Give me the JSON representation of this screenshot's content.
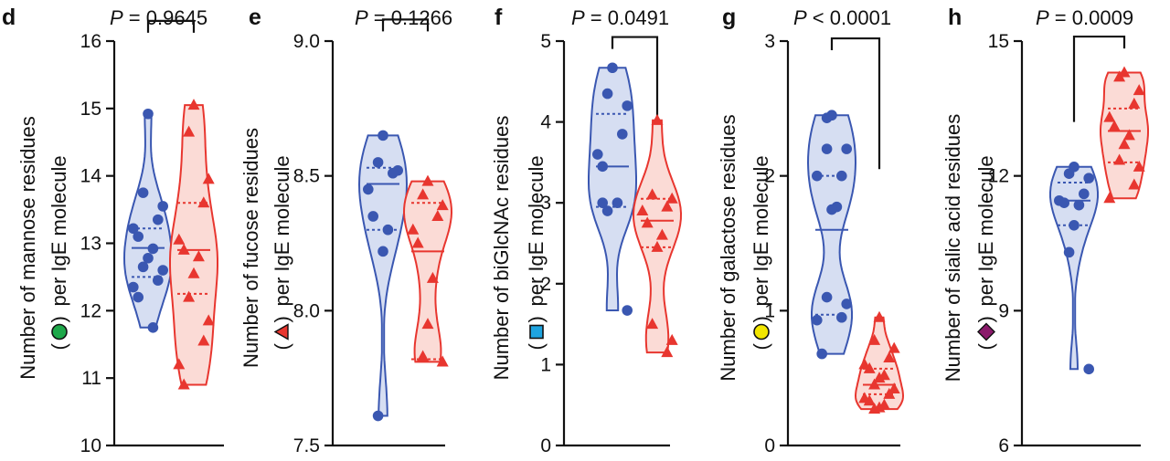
{
  "colors": {
    "blue": "#3a57b1",
    "blue_fill": "#d6def2",
    "red": "#e8362f",
    "red_fill": "#fbdbd6",
    "axis": "#111111",
    "mannose_symbol": "#1ea84a",
    "fucose_symbol": "#e8362f",
    "biglcnac_symbol": "#1ea4e0",
    "galactose_symbol": "#f2e600",
    "sialic_symbol": "#8b1a6b"
  },
  "chart_data": [
    {
      "type": "violin",
      "panel": "d",
      "p_value": "P = 0.9645",
      "ylabel_line1": "Number of mannose residues",
      "ylabel_line2": "per IgE molecule",
      "symbol": "circle",
      "symbol_color": "mannose_symbol",
      "ylim": [
        10,
        16
      ],
      "yticks": [
        "10",
        "11",
        "12",
        "13",
        "14",
        "15",
        "16"
      ],
      "groups": [
        {
          "name": "blue",
          "shape": "circle",
          "median": 12.93,
          "q1": 12.5,
          "q3": 13.22,
          "points": [
            14.92,
            13.75,
            13.55,
            13.35,
            13.22,
            13.1,
            12.92,
            12.78,
            12.65,
            12.6,
            12.45,
            12.35,
            12.2,
            11.75
          ]
        },
        {
          "name": "red",
          "shape": "triangle",
          "median": 12.9,
          "q1": 12.25,
          "q3": 13.6,
          "points": [
            15.05,
            14.65,
            13.95,
            13.6,
            13.05,
            12.9,
            12.8,
            12.55,
            12.2,
            11.85,
            11.55,
            11.2,
            10.9
          ]
        }
      ],
      "bracket_y": 16.3
    },
    {
      "type": "violin",
      "panel": "e",
      "p_value": "P = 0.1266",
      "ylabel_line1": "Number of fucose residues",
      "ylabel_line2": "per IgE molecule",
      "symbol": "triangle",
      "symbol_color": "fucose_symbol",
      "ylim": [
        7.5,
        9.0
      ],
      "yticks": [
        "7.5",
        "8.0",
        "8.5",
        "9.0"
      ],
      "groups": [
        {
          "name": "blue",
          "shape": "circle",
          "median": 8.47,
          "q1": 8.3,
          "q3": 8.53,
          "points": [
            8.65,
            8.55,
            8.52,
            8.51,
            8.45,
            8.35,
            8.3,
            8.22,
            7.61
          ]
        },
        {
          "name": "red",
          "shape": "triangle",
          "median": 8.22,
          "q1": 7.82,
          "q3": 8.4,
          "points": [
            8.48,
            8.43,
            8.39,
            8.35,
            8.3,
            8.25,
            8.12,
            7.95,
            7.83,
            7.81
          ]
        }
      ],
      "bracket_y": 9.08
    },
    {
      "type": "violin",
      "panel": "f",
      "p_value": "P = 0.0491",
      "ylabel_line1": "Number of biGlcNAc residues",
      "ylabel_line2": "per IgE molecule",
      "symbol": "square",
      "symbol_color": "biglcnac_symbol",
      "ylim": [
        0,
        5
      ],
      "yticks": [
        "0",
        "1",
        "2",
        "3",
        "4",
        "5"
      ],
      "groups": [
        {
          "name": "blue",
          "shape": "circle",
          "median": 3.45,
          "q1": 2.95,
          "q3": 4.1,
          "points": [
            4.67,
            4.35,
            4.2,
            3.85,
            3.6,
            3.45,
            3.0,
            3.0,
            2.9,
            1.67
          ]
        },
        {
          "name": "red",
          "shape": "triangle",
          "median": 2.78,
          "q1": 2.45,
          "q3": 3.05,
          "points": [
            4.02,
            3.1,
            3.05,
            2.95,
            2.9,
            2.75,
            2.6,
            2.45,
            1.5,
            1.3,
            1.15
          ]
        }
      ],
      "bracket_y": 5.05,
      "bracket_right_y": 3.4
    },
    {
      "type": "violin",
      "panel": "g",
      "p_value": "P < 0.0001",
      "ylabel_line1": "Number of galactose residues",
      "ylabel_line2": "per IgE molecule",
      "symbol": "circle",
      "symbol_color": "galactose_symbol",
      "ylim": [
        0,
        3
      ],
      "yticks": [
        "0",
        "1",
        "2",
        "3"
      ],
      "groups": [
        {
          "name": "blue",
          "shape": "circle",
          "median": 1.6,
          "q1": 0.97,
          "q3": 2.0,
          "points": [
            2.45,
            2.43,
            2.2,
            2.2,
            2.0,
            2.0,
            1.77,
            1.75,
            1.1,
            1.05,
            0.95,
            0.93,
            0.68
          ]
        },
        {
          "name": "red",
          "shape": "triangle",
          "median": 0.45,
          "q1": 0.38,
          "q3": 0.57,
          "points": [
            0.95,
            0.78,
            0.72,
            0.65,
            0.6,
            0.57,
            0.52,
            0.5,
            0.45,
            0.42,
            0.38,
            0.35,
            0.33,
            0.3,
            0.28,
            0.27
          ]
        }
      ],
      "bracket_y": 3.02,
      "bracket_right_y": 2.05
    },
    {
      "type": "violin",
      "panel": "h",
      "p_value": "P = 0.0009",
      "ylabel_line1": "Number of sialic acid residues",
      "ylabel_line2": "per IgE molecule",
      "symbol": "diamond",
      "symbol_color": "sialic_symbol",
      "ylim": [
        6,
        15
      ],
      "yticks": [
        "6",
        "9",
        "12",
        "15"
      ],
      "groups": [
        {
          "name": "blue",
          "shape": "circle",
          "median": 11.45,
          "q1": 10.9,
          "q3": 11.85,
          "points": [
            12.2,
            12.05,
            11.95,
            11.6,
            11.45,
            11.4,
            11.35,
            10.9,
            10.3,
            7.7
          ]
        },
        {
          "name": "red",
          "shape": "triangle",
          "median": 13.0,
          "q1": 12.3,
          "q3": 13.5,
          "points": [
            14.3,
            14.2,
            13.9,
            13.6,
            13.3,
            13.1,
            12.9,
            12.7,
            12.35,
            12.2,
            11.8,
            11.5
          ]
        }
      ],
      "bracket_y": 15.1,
      "bracket_left_y": 13.2
    }
  ]
}
